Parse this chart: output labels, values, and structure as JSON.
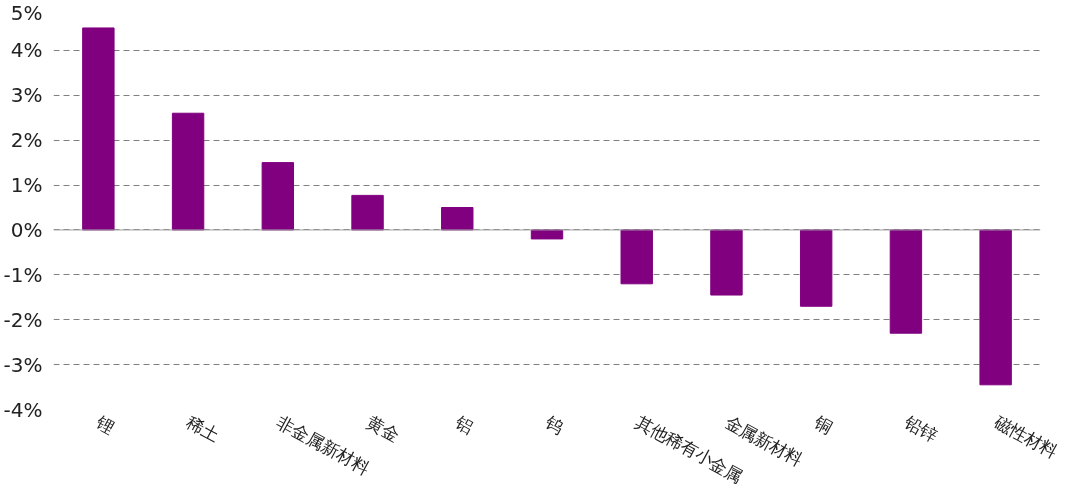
{
  "chart_data": {
    "type": "bar",
    "categories": [
      "锂",
      "稀土",
      "非金属新材料",
      "黄金",
      "铝",
      "钨",
      "其他稀有小金属",
      "金属新材料",
      "铜",
      "铅锌",
      "磁性材料"
    ],
    "values": [
      4.5,
      2.6,
      1.5,
      0.77,
      0.5,
      -0.2,
      -1.2,
      -1.45,
      -1.7,
      -2.3,
      -3.45
    ],
    "color": "#800080",
    "ylim": [
      -4,
      5
    ],
    "yticks": [
      {
        "value": -4,
        "label": "-4%"
      },
      {
        "value": -3,
        "label": "-3%"
      },
      {
        "value": -2,
        "label": "-2%"
      },
      {
        "value": -1,
        "label": "-1%"
      },
      {
        "value": 0,
        "label": "0%"
      },
      {
        "value": 1,
        "label": "1%"
      },
      {
        "value": 2,
        "label": "2%"
      },
      {
        "value": 3,
        "label": "3%"
      },
      {
        "value": 4,
        "label": "4%"
      },
      {
        "value": 5,
        "label": "5%"
      }
    ],
    "grid": "y"
  }
}
